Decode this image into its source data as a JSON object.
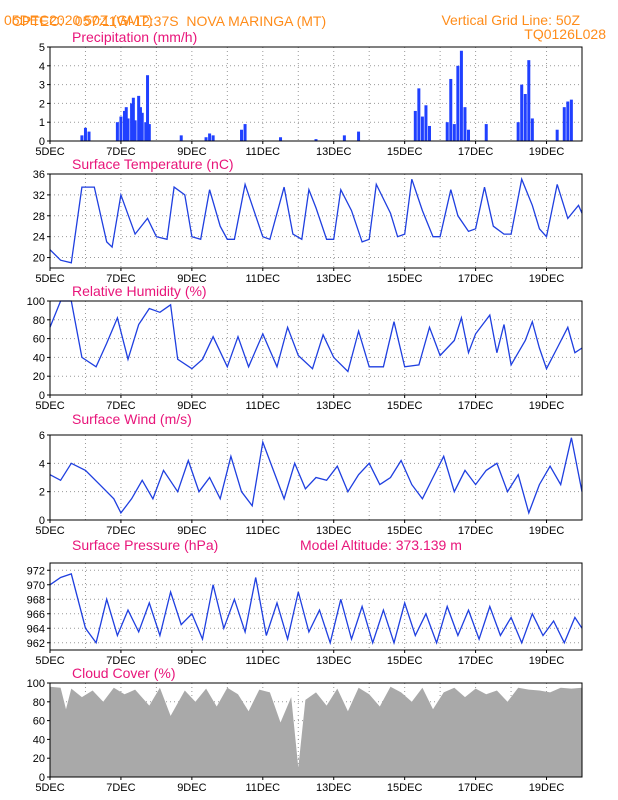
{
  "header": {
    "source": "CPTEC:",
    "coords": "057:11W-12:37S",
    "station": "NOVA MARINGA (MT)",
    "date": "05DEC2020 50Z (GMT)",
    "grid_note": "Vertical Grid Line: 50Z",
    "run_id": "TQ0126L028"
  },
  "model_altitude": "Model Altitude: 373.139 m",
  "colors": {
    "header": "#ff8c1a",
    "title": "#e8157a",
    "line": "#1f3fe0",
    "bars": "#2040ff",
    "cloud": "#a9a9a9"
  },
  "x_axis": {
    "ticks": [
      "5DEC",
      "7DEC",
      "9DEC",
      "11DEC",
      "13DEC",
      "15DEC",
      "17DEC",
      "19DEC"
    ],
    "range_days": [
      5,
      20
    ]
  },
  "chart_data": [
    {
      "type": "bar",
      "title": "Precipitation (mm/h)",
      "ylim": [
        0,
        5
      ],
      "yticks": [
        "0",
        "1",
        "2",
        "3",
        "4",
        "5"
      ],
      "x": [
        5.9,
        6.0,
        6.1,
        6.9,
        7.0,
        7.1,
        7.15,
        7.2,
        7.3,
        7.35,
        7.4,
        7.5,
        7.55,
        7.6,
        7.7,
        7.75,
        7.8,
        8.7,
        9.4,
        9.5,
        9.6,
        10.4,
        10.5,
        11.5,
        12.5,
        13.3,
        13.7,
        15.3,
        15.4,
        15.5,
        15.6,
        15.7,
        16.2,
        16.3,
        16.4,
        16.5,
        16.6,
        16.7,
        16.8,
        17.3,
        18.2,
        18.3,
        18.4,
        18.5,
        18.6,
        19.3,
        19.5,
        19.6,
        19.7
      ],
      "values": [
        0.3,
        0.7,
        0.5,
        1.0,
        1.3,
        1.6,
        1.8,
        1.2,
        2.0,
        2.3,
        1.1,
        2.4,
        1.8,
        1.5,
        1.0,
        3.5,
        0.9,
        0.3,
        0.2,
        0.4,
        0.3,
        0.6,
        0.9,
        0.2,
        0.1,
        0.3,
        0.5,
        1.6,
        2.8,
        1.3,
        1.9,
        0.8,
        1.0,
        3.3,
        0.9,
        4.0,
        4.8,
        1.8,
        0.6,
        0.9,
        1.0,
        3.0,
        2.5,
        4.3,
        1.2,
        0.6,
        1.8,
        2.1,
        2.2
      ]
    },
    {
      "type": "line",
      "title": "Surface Temperature (nC)",
      "ylim": [
        18,
        36
      ],
      "yticks": [
        "20",
        "24",
        "28",
        "32",
        "36"
      ],
      "x": [
        5.0,
        5.3,
        5.6,
        5.9,
        6.25,
        6.6,
        6.75,
        7.0,
        7.4,
        7.75,
        8.0,
        8.3,
        8.5,
        8.8,
        9.0,
        9.25,
        9.5,
        9.8,
        10.0,
        10.2,
        10.5,
        10.8,
        11.0,
        11.2,
        11.6,
        11.85,
        12.1,
        12.3,
        12.5,
        12.8,
        13.0,
        13.2,
        13.5,
        13.8,
        14.0,
        14.2,
        14.6,
        14.8,
        15.0,
        15.2,
        15.5,
        15.8,
        16.0,
        16.3,
        16.5,
        16.8,
        17.0,
        17.25,
        17.5,
        17.8,
        18.0,
        18.3,
        18.6,
        18.8,
        19.0,
        19.3,
        19.6,
        19.9,
        20.0
      ],
      "values": [
        21.5,
        19.5,
        19.0,
        33.5,
        33.5,
        23.0,
        22.0,
        32.0,
        24.5,
        27.5,
        24.0,
        23.5,
        33.5,
        32.0,
        24.0,
        23.5,
        33.0,
        26.0,
        23.5,
        23.5,
        34.0,
        28.0,
        24.0,
        23.5,
        33.5,
        24.5,
        23.5,
        33.0,
        29.5,
        23.5,
        23.5,
        33.0,
        29.0,
        23.0,
        23.5,
        34.0,
        28.5,
        24.0,
        24.5,
        35.0,
        29.0,
        24.0,
        24.0,
        33.0,
        28.0,
        25.0,
        25.5,
        33.5,
        26.0,
        24.5,
        24.5,
        35.0,
        30.0,
        25.5,
        24.0,
        34.0,
        27.5,
        30.0,
        28.5
      ]
    },
    {
      "type": "line",
      "title": "Relative Humidity (%)",
      "ylim": [
        0,
        100
      ],
      "yticks": [
        "0",
        "20",
        "40",
        "60",
        "80",
        "100"
      ],
      "x": [
        5.0,
        5.3,
        5.6,
        5.9,
        6.3,
        6.6,
        6.9,
        7.2,
        7.5,
        7.8,
        8.1,
        8.4,
        8.6,
        9.0,
        9.3,
        9.6,
        10.0,
        10.3,
        10.6,
        11.0,
        11.4,
        11.7,
        12.0,
        12.4,
        12.7,
        13.0,
        13.4,
        13.7,
        14.0,
        14.4,
        14.7,
        15.0,
        15.4,
        15.7,
        16.0,
        16.4,
        16.6,
        16.8,
        17.0,
        17.4,
        17.6,
        17.8,
        18.0,
        18.4,
        18.6,
        18.8,
        19.0,
        19.3,
        19.6,
        19.8,
        20.0
      ],
      "values": [
        72,
        100,
        100,
        40,
        30,
        55,
        82,
        38,
        75,
        92,
        88,
        96,
        38,
        28,
        38,
        62,
        30,
        62,
        30,
        65,
        30,
        72,
        42,
        28,
        64,
        40,
        25,
        68,
        30,
        30,
        78,
        30,
        32,
        72,
        42,
        58,
        82,
        45,
        65,
        85,
        45,
        75,
        32,
        58,
        78,
        50,
        28,
        50,
        72,
        45,
        50
      ]
    },
    {
      "type": "line",
      "title": "Surface Wind (m/s)",
      "ylim": [
        0,
        6
      ],
      "yticks": [
        "0",
        "2",
        "4",
        "6"
      ],
      "x": [
        5.0,
        5.3,
        5.6,
        6.0,
        6.4,
        6.8,
        7.0,
        7.3,
        7.6,
        7.9,
        8.2,
        8.6,
        8.9,
        9.2,
        9.5,
        9.8,
        10.1,
        10.4,
        10.7,
        11.0,
        11.3,
        11.6,
        11.9,
        12.2,
        12.5,
        12.8,
        13.1,
        13.4,
        13.7,
        14.0,
        14.3,
        14.6,
        14.9,
        15.2,
        15.5,
        15.8,
        16.1,
        16.4,
        16.7,
        17.0,
        17.3,
        17.6,
        17.9,
        18.2,
        18.5,
        18.8,
        19.1,
        19.4,
        19.7,
        20.0
      ],
      "values": [
        3.2,
        2.8,
        4.0,
        3.5,
        2.5,
        1.5,
        0.5,
        1.5,
        2.8,
        1.5,
        3.5,
        2.0,
        4.2,
        2.0,
        3.0,
        1.5,
        4.5,
        2.0,
        1.0,
        5.5,
        3.5,
        1.5,
        4.0,
        2.2,
        3.0,
        2.8,
        3.8,
        2.0,
        3.2,
        4.0,
        2.5,
        3.0,
        4.2,
        2.5,
        1.5,
        3.0,
        4.5,
        2.0,
        3.5,
        2.5,
        3.5,
        4.0,
        2.0,
        3.2,
        0.5,
        2.5,
        3.8,
        2.5,
        5.8,
        2.0
      ]
    },
    {
      "type": "line",
      "title": "Surface Pressure (hPa)",
      "ylim": [
        961,
        973
      ],
      "yticks": [
        "962",
        "964",
        "966",
        "968",
        "970",
        "972"
      ],
      "x": [
        5.0,
        5.3,
        5.6,
        6.0,
        6.3,
        6.6,
        6.9,
        7.2,
        7.5,
        7.8,
        8.1,
        8.4,
        8.7,
        9.0,
        9.3,
        9.6,
        9.9,
        10.2,
        10.5,
        10.8,
        11.1,
        11.4,
        11.7,
        12.0,
        12.3,
        12.6,
        12.9,
        13.2,
        13.5,
        13.8,
        14.1,
        14.4,
        14.7,
        15.0,
        15.3,
        15.6,
        15.9,
        16.2,
        16.5,
        16.8,
        17.1,
        17.4,
        17.7,
        18.0,
        18.3,
        18.6,
        18.9,
        19.2,
        19.5,
        19.8,
        20.0
      ],
      "values": [
        970.0,
        971.0,
        971.5,
        964.0,
        962.0,
        968.0,
        963.0,
        966.5,
        963.5,
        967.5,
        963.0,
        969.0,
        964.5,
        966.0,
        962.5,
        970.0,
        964.0,
        968.0,
        963.5,
        971.0,
        963.0,
        967.5,
        962.5,
        969.0,
        963.5,
        966.5,
        962.0,
        968.0,
        962.5,
        967.0,
        962.0,
        966.5,
        962.0,
        967.5,
        963.0,
        966.0,
        962.0,
        967.0,
        963.0,
        966.5,
        962.5,
        967.0,
        963.0,
        965.5,
        962.0,
        966.0,
        963.0,
        965.0,
        962.0,
        965.5,
        964.0
      ]
    },
    {
      "type": "area",
      "title": "Cloud Cover (%)",
      "ylim": [
        0,
        100
      ],
      "yticks": [
        "0",
        "20",
        "40",
        "60",
        "80",
        "100"
      ],
      "x": [
        5.0,
        5.3,
        5.45,
        5.6,
        5.9,
        6.2,
        6.5,
        6.8,
        7.1,
        7.4,
        7.8,
        8.1,
        8.4,
        8.8,
        9.1,
        9.4,
        9.7,
        10.0,
        10.3,
        10.6,
        10.9,
        11.2,
        11.5,
        11.8,
        12.0,
        12.2,
        12.5,
        12.8,
        13.1,
        13.4,
        13.7,
        14.0,
        14.3,
        14.6,
        14.9,
        15.2,
        15.5,
        15.8,
        16.1,
        16.4,
        16.7,
        17.0,
        17.3,
        17.6,
        17.9,
        18.2,
        18.5,
        18.8,
        19.1,
        19.4,
        19.7,
        20.0
      ],
      "values": [
        96,
        95,
        72,
        94,
        85,
        92,
        80,
        95,
        88,
        93,
        76,
        95,
        65,
        92,
        80,
        94,
        75,
        95,
        88,
        70,
        93,
        90,
        58,
        85,
        10,
        82,
        90,
        76,
        94,
        70,
        95,
        88,
        75,
        96,
        90,
        80,
        95,
        72,
        90,
        95,
        85,
        94,
        88,
        92,
        80,
        95,
        93,
        92,
        90,
        95,
        94,
        95
      ]
    }
  ]
}
